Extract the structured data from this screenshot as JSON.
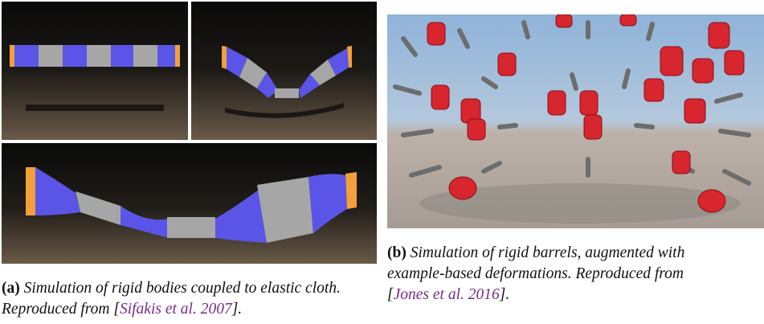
{
  "figure": {
    "caption_a": {
      "label": "(a)",
      "text_line1": "Simulation of rigid bodies coupled to elastic cloth.",
      "text_line2_pre": "Reproduced from [",
      "citation": "Sifakis et al. 2007",
      "text_line2_post": "]."
    },
    "caption_b": {
      "label": "(b)",
      "text_line1": "Simulation of rigid barrels, augmented with",
      "text_line2": "example-based deformations. Reproduced from",
      "text_line3_pre": "[",
      "citation": "Jones et al. 2016",
      "text_line3_post": "]."
    }
  },
  "colors": {
    "cloth_blue": "#5a55e6",
    "rigid_gray": "#a6a6a6",
    "anchor_orange": "#f2a03c",
    "barrel_red": "#d8262e",
    "citation_purple": "#7a2a8a"
  }
}
